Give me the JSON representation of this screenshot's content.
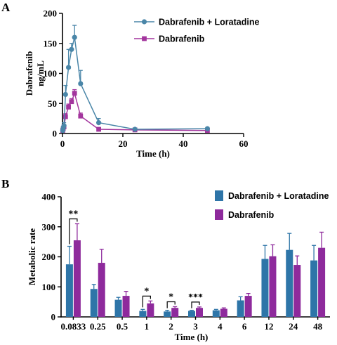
{
  "panels": {
    "a": "A",
    "b": "B"
  },
  "colors": {
    "a_s1": "#4a86a8",
    "a_s2": "#a3359d",
    "b_s1": "#2e75a8",
    "b_s2": "#8e2a9c"
  },
  "chart_data": [
    {
      "type": "line",
      "panel": "A",
      "xlabel": "Time (h)",
      "ylabel": "Dabrafenib ng/mL",
      "ylabel_lines": [
        "Dabrafenib",
        "ng/mL"
      ],
      "xlim": [
        0,
        60
      ],
      "ylim": [
        0,
        200
      ],
      "xticks": [
        0,
        20,
        40,
        60
      ],
      "yticks": [
        0,
        50,
        100,
        150,
        200
      ],
      "legend": "top-right",
      "series": [
        {
          "name": "Dabrafenib + Loratadine",
          "marker": "circle",
          "x": [
            0.0833,
            0.25,
            0.5,
            1,
            2,
            3,
            4,
            6,
            12,
            24,
            48
          ],
          "y": [
            5,
            9,
            13,
            65,
            110,
            140,
            160,
            83,
            18,
            7,
            8
          ],
          "err": [
            2,
            3,
            5,
            15,
            30,
            10,
            20,
            22,
            7,
            2,
            2
          ]
        },
        {
          "name": "Dabrafenib",
          "marker": "square",
          "x": [
            0.0833,
            0.25,
            0.5,
            1,
            2,
            3,
            4,
            6,
            12,
            24,
            48
          ],
          "y": [
            5,
            8,
            11,
            28,
            44,
            53,
            67,
            29,
            7,
            6,
            5
          ],
          "err": [
            1,
            2,
            3,
            5,
            5,
            5,
            6,
            5,
            2,
            1,
            1
          ]
        }
      ]
    },
    {
      "type": "bar",
      "panel": "B",
      "xlabel": "Time (h)",
      "ylabel": "Metabolic rate",
      "categories": [
        "0.0833",
        "0.25",
        "0.5",
        "1",
        "2",
        "3",
        "4",
        "6",
        "12",
        "24",
        "48"
      ],
      "ylim": [
        0,
        400
      ],
      "yticks": [
        0,
        100,
        200,
        300,
        400
      ],
      "legend": "top-right",
      "series": [
        {
          "name": "Dabrafenib + Loratadine",
          "values": [
            175,
            93,
            57,
            20,
            18,
            20,
            22,
            55,
            193,
            223,
            188
          ],
          "err": [
            60,
            15,
            8,
            5,
            4,
            2,
            3,
            12,
            45,
            55,
            50
          ]
        },
        {
          "name": "Dabrafenib",
          "values": [
            255,
            180,
            70,
            45,
            30,
            30,
            27,
            70,
            202,
            173,
            230
          ],
          "err": [
            55,
            45,
            15,
            8,
            4,
            3,
            3,
            8,
            38,
            30,
            52
          ]
        }
      ],
      "significance": [
        {
          "category": "0.0833",
          "label": "**"
        },
        {
          "category": "1",
          "label": "*"
        },
        {
          "category": "2",
          "label": "*"
        },
        {
          "category": "3",
          "label": "***"
        }
      ]
    }
  ]
}
